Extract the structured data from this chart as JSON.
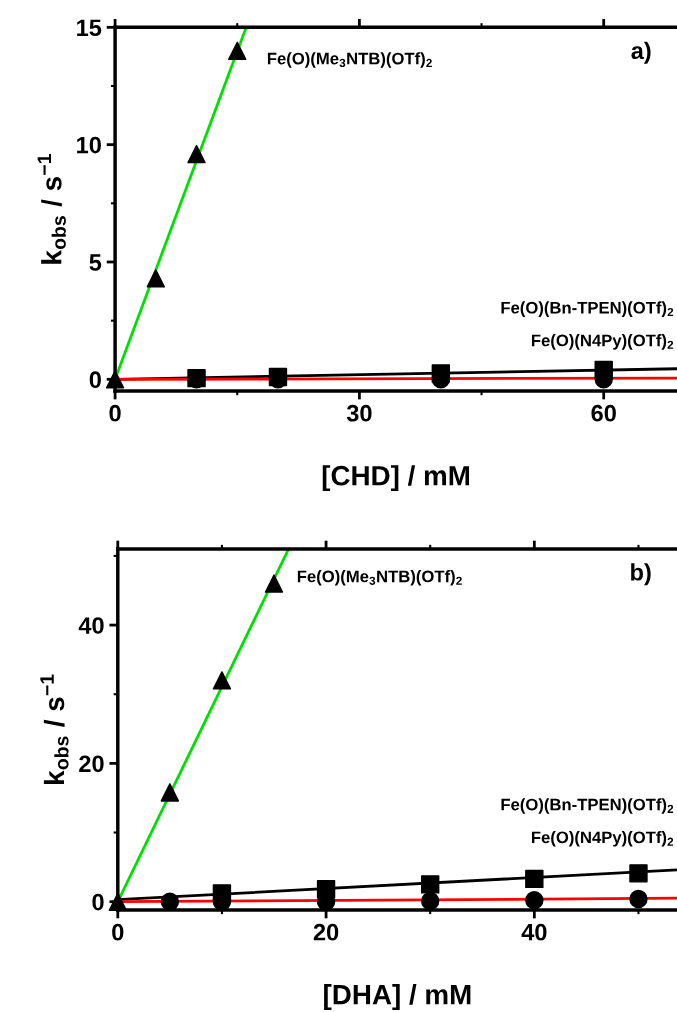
{
  "chart_data": [
    {
      "type": "scatter",
      "xlabel": "[CHD] / mM",
      "ylabel": "k$_{obs}$ / s$^{−1}$",
      "xlim": [
        0,
        69
      ],
      "xticks": [
        0,
        30,
        60
      ],
      "ylim": [
        -0.5,
        15
      ],
      "yticks": [
        0,
        5,
        10,
        15
      ],
      "grid": false,
      "annotations": [
        "a)",
        "Fe(O)(Me$_{3}$NTB)(OTf)$_{2}$",
        "Fe(O)(Bn-TPEN)(OTf)$_{2}$",
        "Fe(O)(N4Py)(OTf)$_{2}$"
      ],
      "series": [
        {
          "marker": "triangle",
          "color": "#000000",
          "x": [
            0,
            5,
            10,
            15
          ],
          "values": [
            0,
            4.3,
            9.6,
            14.0
          ]
        },
        {
          "marker": "square",
          "color": "#000000",
          "x": [
            10,
            20,
            40,
            60
          ],
          "values": [
            0.05,
            0.1,
            0.25,
            0.4
          ]
        },
        {
          "marker": "circle",
          "color": "#000000",
          "x": [
            10,
            20,
            40,
            60
          ],
          "values": [
            0,
            0,
            0,
            0
          ]
        },
        {
          "type": "line",
          "color": "#00e000",
          "x": [
            0,
            16.1
          ],
          "values": [
            0,
            15
          ]
        },
        {
          "type": "line",
          "color": "#000000",
          "x": [
            0,
            69
          ],
          "values": [
            0,
            0.45
          ]
        },
        {
          "type": "line",
          "color": "#ff0000",
          "x": [
            0,
            69
          ],
          "values": [
            0,
            0.05
          ]
        }
      ]
    },
    {
      "type": "scatter",
      "xlabel": "[DHA] / mM",
      "ylabel": "k$_{obs}$ / s$^{−1}$",
      "xlim": [
        0,
        53.7
      ],
      "xticks": [
        0,
        20,
        40
      ],
      "ylim": [
        -1.2,
        51
      ],
      "yticks": [
        0,
        20,
        40
      ],
      "grid": false,
      "annotations": [
        "b)",
        "Fe(O)(Me$_{3}$NTB)(OTf)$_{2}$",
        "Fe(O)(Bn-TPEN)(OTf)$_{2}$",
        "Fe(O)(N4Py)(OTf)$_{2}$"
      ],
      "series": [
        {
          "marker": "triangle",
          "color": "#000000",
          "x": [
            0,
            5,
            10,
            15
          ],
          "values": [
            0,
            15.8,
            32,
            46
          ]
        },
        {
          "marker": "square",
          "color": "#000000",
          "x": [
            10,
            20,
            30,
            40,
            50
          ],
          "values": [
            1.2,
            1.8,
            2.5,
            3.3,
            4.1
          ]
        },
        {
          "marker": "circle",
          "color": "#000000",
          "x": [
            5,
            10,
            20,
            30,
            40,
            50
          ],
          "values": [
            0,
            0,
            0,
            0.1,
            0.2,
            0.4
          ]
        },
        {
          "type": "line",
          "color": "#00e000",
          "x": [
            0,
            16.4
          ],
          "values": [
            0,
            51
          ]
        },
        {
          "type": "line",
          "color": "#000000",
          "x": [
            0,
            53.7
          ],
          "values": [
            0.3,
            4.6
          ]
        },
        {
          "type": "line",
          "color": "#ff0000",
          "x": [
            0,
            53.7
          ],
          "values": [
            0,
            0.5
          ]
        }
      ]
    }
  ]
}
